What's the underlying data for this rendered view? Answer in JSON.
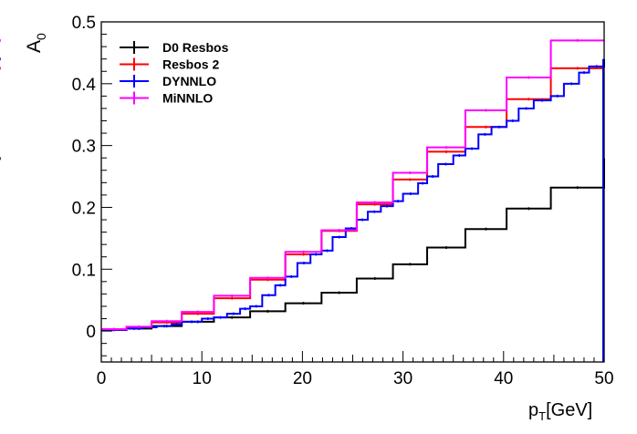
{
  "chart_data": {
    "type": "line",
    "step": true,
    "xlabel": "p_T [GeV]",
    "xlabel_main": "p",
    "xlabel_sub": "T",
    "xlabel_unit": "[GeV]",
    "ylabel": "A_0",
    "ylabel_main": "A",
    "ylabel_sub": "0",
    "xlim": [
      0,
      50
    ],
    "ylim": [
      -0.05,
      0.5
    ],
    "x_ticks": [
      0,
      10,
      20,
      30,
      40,
      50
    ],
    "x_tick_labels": [
      "0",
      "10",
      "20",
      "30",
      "40",
      "50"
    ],
    "y_ticks": [
      0,
      0.1,
      0.2,
      0.3,
      0.4,
      0.5
    ],
    "y_tick_labels": [
      "0",
      "0.1",
      "0.2",
      "0.3",
      "0.4",
      "0.5"
    ],
    "grid": false,
    "legend_position": "top-left",
    "series": [
      {
        "name": "D0 Resbos",
        "color": "#000000",
        "x_edges": [
          0,
          2.5,
          5,
          8,
          11.2,
          14.8,
          18.3,
          21.9,
          25.4,
          29,
          32.4,
          36.2,
          40.3,
          44.7,
          50
        ],
        "values": [
          0.002,
          0.004,
          0.008,
          0.015,
          0.022,
          0.032,
          0.045,
          0.062,
          0.085,
          0.108,
          0.135,
          0.165,
          0.198,
          0.232,
          0.279
        ]
      },
      {
        "name": "Resbos 2",
        "color": "#ff0000",
        "x_edges": [
          0,
          2.5,
          5,
          8,
          11.2,
          14.8,
          18.3,
          21.9,
          25.4,
          29,
          32.4,
          36.2,
          40.3,
          44.7,
          50
        ],
        "values": [
          0.002,
          0.006,
          0.014,
          0.028,
          0.053,
          0.083,
          0.124,
          0.162,
          0.205,
          0.245,
          0.29,
          0.33,
          0.375,
          0.425,
          0.425
        ]
      },
      {
        "name": "DYNNLO",
        "color": "#0000ff",
        "x_edges": [
          0,
          2.5,
          4,
          5.5,
          7,
          8,
          10,
          11.2,
          12.5,
          13.8,
          14.8,
          16,
          17.3,
          18.3,
          19.5,
          20.8,
          21.9,
          23,
          24.3,
          25.4,
          26.5,
          27.8,
          29,
          30,
          31.5,
          32.4,
          33.5,
          35,
          36.2,
          37.5,
          38.8,
          40.3,
          41.5,
          43,
          44.7,
          46,
          47.5,
          48.5,
          50
        ],
        "values": [
          0.002,
          0.004,
          0.006,
          0.008,
          0.011,
          0.015,
          0.02,
          0.022,
          0.028,
          0.036,
          0.04,
          0.058,
          0.074,
          0.088,
          0.11,
          0.124,
          0.13,
          0.152,
          0.166,
          0.18,
          0.193,
          0.202,
          0.21,
          0.222,
          0.239,
          0.25,
          0.27,
          0.284,
          0.295,
          0.318,
          0.33,
          0.34,
          0.36,
          0.373,
          0.38,
          0.4,
          0.418,
          0.428,
          0.44
        ]
      },
      {
        "name": "MiNNLO",
        "color": "#ff00ff",
        "x_edges": [
          0,
          2.5,
          5,
          8,
          11.2,
          14.8,
          18.3,
          21.9,
          25.4,
          29,
          32.4,
          36.2,
          40.3,
          44.7,
          50
        ],
        "values": [
          0.003,
          0.007,
          0.016,
          0.031,
          0.057,
          0.086,
          0.128,
          0.163,
          0.208,
          0.256,
          0.297,
          0.357,
          0.41,
          0.47,
          0.47
        ]
      }
    ]
  }
}
